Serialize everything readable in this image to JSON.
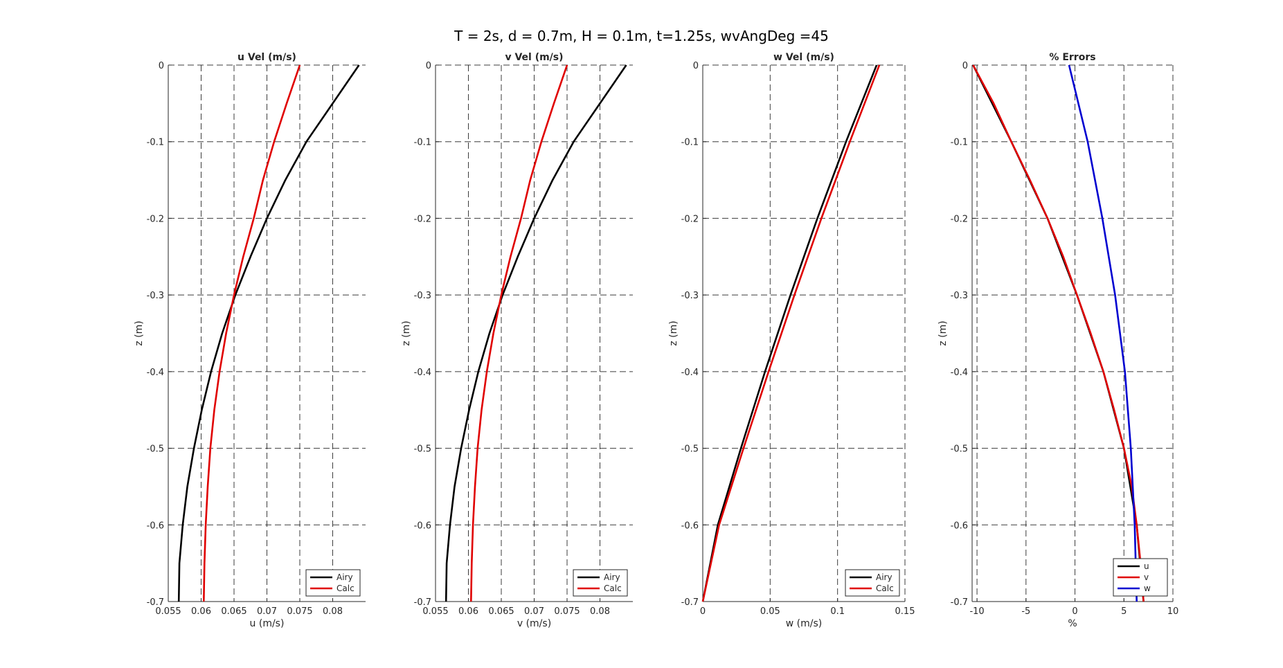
{
  "figure": {
    "suptitle": "T = 2s, d = 0.7m, H = 0.1m, t=1.25s, wvAngDeg =45"
  },
  "colors": {
    "airy": "#000000",
    "calc": "#e00000",
    "u": "#000000",
    "v": "#e00000",
    "w": "#0000d0",
    "grid": "#262626",
    "axis": "#262626"
  },
  "chart_data": [
    {
      "type": "line",
      "title": "u Vel (m/s)",
      "xlabel": "u (m/s)",
      "ylabel": "z (m)",
      "xlim": [
        0.055,
        0.085
      ],
      "ylim": [
        -0.7,
        0
      ],
      "xticks": [
        0.055,
        0.06,
        0.065,
        0.07,
        0.075,
        0.08
      ],
      "xtick_labels": [
        "0.055",
        "0.06",
        "0.065",
        "0.07",
        "0.075",
        "0.08"
      ],
      "yticks": [
        0,
        -0.1,
        -0.2,
        -0.3,
        -0.4,
        -0.5,
        -0.6,
        -0.7
      ],
      "ytick_labels": [
        "0",
        "-0.1",
        "-0.2",
        "-0.3",
        "-0.4",
        "-0.5",
        "-0.6",
        "-0.7"
      ],
      "grid": true,
      "legend": "bottom-right",
      "series": [
        {
          "name": "Airy",
          "color": "#000000",
          "z": [
            0,
            -0.05,
            -0.1,
            -0.15,
            -0.2,
            -0.25,
            -0.3,
            -0.35,
            -0.4,
            -0.45,
            -0.5,
            -0.55,
            -0.6,
            -0.65,
            -0.7
          ],
          "x": [
            0.084,
            0.08,
            0.076,
            0.0728,
            0.07,
            0.0675,
            0.0652,
            0.0632,
            0.0615,
            0.0601,
            0.0589,
            0.0579,
            0.0572,
            0.0567,
            0.0566
          ]
        },
        {
          "name": "Calc",
          "color": "#e00000",
          "z": [
            0,
            -0.05,
            -0.1,
            -0.15,
            -0.2,
            -0.25,
            -0.3,
            -0.35,
            -0.4,
            -0.45,
            -0.5,
            -0.55,
            -0.6,
            -0.65,
            -0.7
          ],
          "x": [
            0.075,
            0.073,
            0.0711,
            0.0694,
            0.068,
            0.0664,
            0.065,
            0.0638,
            0.0628,
            0.062,
            0.0614,
            0.061,
            0.0607,
            0.0605,
            0.0604
          ]
        }
      ]
    },
    {
      "type": "line",
      "title": "v Vel (m/s)",
      "xlabel": "v (m/s)",
      "ylabel": "z (m)",
      "xlim": [
        0.055,
        0.085
      ],
      "ylim": [
        -0.7,
        0
      ],
      "xticks": [
        0.055,
        0.06,
        0.065,
        0.07,
        0.075,
        0.08
      ],
      "xtick_labels": [
        "0.055",
        "0.06",
        "0.065",
        "0.07",
        "0.075",
        "0.08"
      ],
      "yticks": [
        0,
        -0.1,
        -0.2,
        -0.3,
        -0.4,
        -0.5,
        -0.6,
        -0.7
      ],
      "ytick_labels": [
        "0",
        "-0.1",
        "-0.2",
        "-0.3",
        "-0.4",
        "-0.5",
        "-0.6",
        "-0.7"
      ],
      "grid": true,
      "legend": "bottom-right",
      "series": [
        {
          "name": "Airy",
          "color": "#000000",
          "z": [
            0,
            -0.05,
            -0.1,
            -0.15,
            -0.2,
            -0.25,
            -0.3,
            -0.35,
            -0.4,
            -0.45,
            -0.5,
            -0.55,
            -0.6,
            -0.65,
            -0.7
          ],
          "x": [
            0.084,
            0.08,
            0.076,
            0.0728,
            0.07,
            0.0675,
            0.0652,
            0.0632,
            0.0615,
            0.0601,
            0.0589,
            0.0579,
            0.0572,
            0.0567,
            0.0566
          ]
        },
        {
          "name": "Calc",
          "color": "#e00000",
          "z": [
            0,
            -0.05,
            -0.1,
            -0.15,
            -0.2,
            -0.25,
            -0.3,
            -0.35,
            -0.4,
            -0.45,
            -0.5,
            -0.55,
            -0.6,
            -0.65,
            -0.7
          ],
          "x": [
            0.075,
            0.073,
            0.0711,
            0.0694,
            0.068,
            0.0664,
            0.065,
            0.0638,
            0.0628,
            0.062,
            0.0614,
            0.061,
            0.0607,
            0.0605,
            0.0604
          ]
        }
      ]
    },
    {
      "type": "line",
      "title": "w Vel (m/s)",
      "xlabel": "w (m/s)",
      "ylabel": "z (m)",
      "xlim": [
        0,
        0.15
      ],
      "ylim": [
        -0.7,
        0
      ],
      "xticks": [
        0,
        0.05,
        0.1,
        0.15
      ],
      "xtick_labels": [
        "0",
        "0.05",
        "0.1",
        "0.15"
      ],
      "yticks": [
        0,
        -0.1,
        -0.2,
        -0.3,
        -0.4,
        -0.5,
        -0.6,
        -0.7
      ],
      "ytick_labels": [
        "0",
        "-0.1",
        "-0.2",
        "-0.3",
        "-0.4",
        "-0.5",
        "-0.6",
        "-0.7"
      ],
      "grid": true,
      "legend": "bottom-right",
      "series": [
        {
          "name": "Airy",
          "color": "#000000",
          "z": [
            0,
            -0.1,
            -0.2,
            -0.3,
            -0.4,
            -0.5,
            -0.6,
            -0.7
          ],
          "x": [
            0.129,
            0.1063,
            0.085,
            0.0651,
            0.0462,
            0.0283,
            0.0112,
            0.0
          ]
        },
        {
          "name": "Calc",
          "color": "#e00000",
          "z": [
            0,
            -0.1,
            -0.2,
            -0.3,
            -0.4,
            -0.5,
            -0.6,
            -0.7
          ],
          "x": [
            0.131,
            0.1091,
            0.088,
            0.068,
            0.0488,
            0.0302,
            0.0121,
            0.0
          ]
        }
      ]
    },
    {
      "type": "line",
      "title": "% Errors",
      "xlabel": "%",
      "ylabel": "z (m)",
      "xlim": [
        -10.5,
        10
      ],
      "ylim": [
        -0.7,
        0
      ],
      "xticks": [
        -10,
        -5,
        0,
        5,
        10
      ],
      "xtick_labels": [
        "-10",
        "-5",
        "0",
        "5",
        "10"
      ],
      "yticks": [
        0,
        -0.1,
        -0.2,
        -0.3,
        -0.4,
        -0.5,
        -0.6,
        -0.7
      ],
      "ytick_labels": [
        "0",
        "-0.1",
        "-0.2",
        "-0.3",
        "-0.4",
        "-0.5",
        "-0.6",
        "-0.7"
      ],
      "grid": true,
      "legend": "bottom-right",
      "series": [
        {
          "name": "u",
          "color": "#000000",
          "z": [
            0,
            -0.1,
            -0.2,
            -0.3,
            -0.4,
            -0.5,
            -0.6,
            -0.7
          ],
          "x": [
            -10.4,
            -6.5,
            -2.8,
            0.2,
            2.9,
            5.0,
            6.3,
            7.0
          ]
        },
        {
          "name": "v",
          "color": "#e00000",
          "z": [
            0,
            -0.05,
            -0.1,
            -0.15,
            -0.2,
            -0.25,
            -0.3,
            -0.35,
            -0.4,
            -0.45,
            -0.5,
            -0.55,
            -0.6,
            -0.65,
            -0.7
          ],
          "x": [
            -10.4,
            -8.3,
            -6.5,
            -4.6,
            -2.8,
            -1.2,
            0.2,
            1.6,
            2.9,
            4.0,
            5.0,
            5.8,
            6.3,
            6.7,
            7.0
          ]
        },
        {
          "name": "w",
          "color": "#0000d0",
          "z": [
            0,
            -0.1,
            -0.2,
            -0.3,
            -0.4,
            -0.5,
            -0.6,
            -0.7
          ],
          "x": [
            -0.6,
            1.3,
            2.8,
            4.1,
            5.1,
            5.7,
            6.1,
            6.3
          ]
        }
      ]
    }
  ]
}
